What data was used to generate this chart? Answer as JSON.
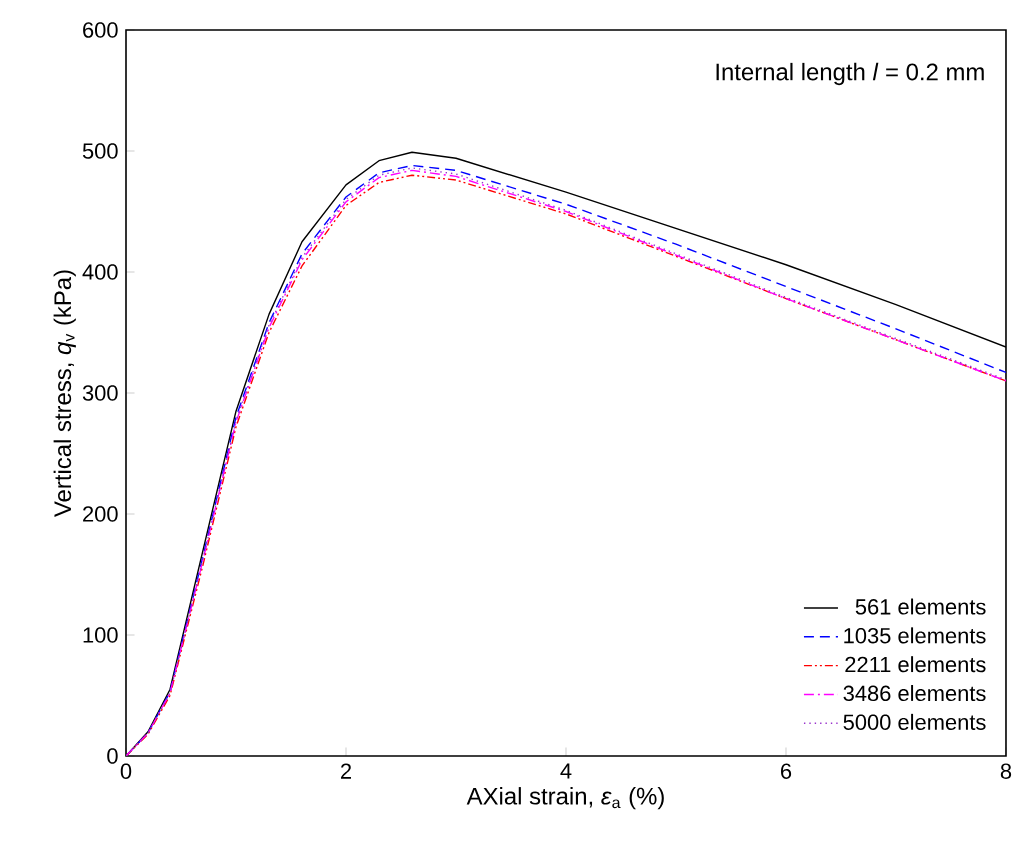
{
  "chart_data": {
    "type": "line",
    "xlabel": "AXial strain, *ε*$_{a}$ (%)",
    "ylabel": "Vertical stress, *q*$_{v}$ (kPa)",
    "annotations": [
      "Internal length *l* = 0.2 mm"
    ],
    "xlim": [
      0,
      8
    ],
    "xticks": [
      0,
      2,
      4,
      6,
      8
    ],
    "ylim": [
      0,
      600
    ],
    "yticks": [
      0,
      100,
      200,
      300,
      400,
      500,
      600
    ],
    "grid": false,
    "legend": "bottom right",
    "marker": "none",
    "series": [
      {
        "name": "561 elements",
        "color": "#000000",
        "line_style": "solid",
        "x": [
          0,
          0.2,
          0.4,
          0.7,
          1.0,
          1.3,
          1.6,
          2.0,
          2.3,
          2.6,
          3.0,
          4.0,
          5.0,
          6.0,
          7.0,
          8.0
        ],
        "values": [
          0,
          20,
          55,
          170,
          285,
          365,
          425,
          472,
          492,
          499,
          494,
          466,
          436,
          406,
          373,
          338
        ]
      },
      {
        "name": "1035 elements",
        "color": "#0000ff",
        "line_style": "dashed",
        "x": [
          0,
          0.2,
          0.4,
          0.7,
          1.0,
          1.3,
          1.6,
          2.0,
          2.3,
          2.6,
          3.0,
          4.0,
          5.0,
          6.0,
          7.0,
          8.0
        ],
        "values": [
          0,
          19,
          53,
          165,
          280,
          358,
          415,
          462,
          482,
          488,
          484,
          456,
          423,
          388,
          353,
          317
        ]
      },
      {
        "name": "2211 elements",
        "color": "#ff0000",
        "line_style": "dashdotdotted",
        "x": [
          0,
          0.2,
          0.4,
          0.7,
          1.0,
          1.3,
          1.6,
          2.0,
          2.3,
          2.6,
          3.0,
          4.0,
          5.0,
          6.0,
          7.0,
          8.0
        ],
        "values": [
          0,
          18,
          50,
          158,
          272,
          350,
          405,
          455,
          474,
          480,
          476,
          448,
          413,
          378,
          344,
          310
        ]
      },
      {
        "name": "3486 elements",
        "color": "#ff00ff",
        "line_style": "dashdotted",
        "x": [
          0,
          0.2,
          0.4,
          0.7,
          1.0,
          1.3,
          1.6,
          2.0,
          2.3,
          2.6,
          3.0,
          4.0,
          5.0,
          6.0,
          7.0,
          8.0
        ],
        "values": [
          0,
          19,
          52,
          162,
          276,
          354,
          410,
          458,
          478,
          484,
          479,
          450,
          414,
          378,
          344,
          310
        ]
      },
      {
        "name": "5000 elements",
        "color": "#9933cc",
        "line_style": "dotted",
        "x": [
          0,
          0.2,
          0.4,
          0.7,
          1.0,
          1.3,
          1.6,
          2.0,
          2.3,
          2.6,
          3.0,
          4.0,
          5.0,
          6.0,
          7.0,
          8.0
        ],
        "values": [
          0,
          19,
          52,
          163,
          277,
          356,
          412,
          460,
          480,
          486,
          481,
          451,
          415,
          379,
          345,
          311
        ]
      }
    ]
  }
}
